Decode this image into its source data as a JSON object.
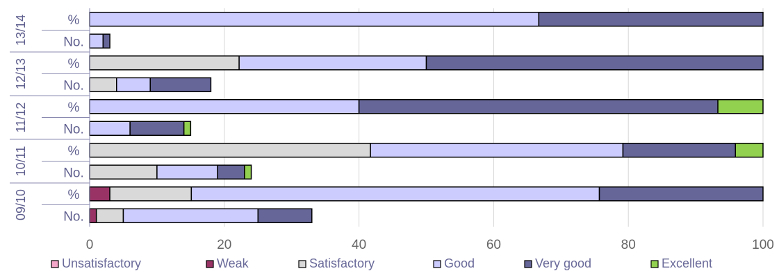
{
  "chart_data": {
    "type": "bar",
    "orientation": "horizontal",
    "stacked": true,
    "xlim": [
      0,
      100
    ],
    "x_ticks": [
      0,
      20,
      40,
      60,
      80,
      100
    ],
    "grid": "vertical",
    "legend_position": "bottom",
    "categories": [
      {
        "group": "13/14",
        "label": "%"
      },
      {
        "group": "13/14",
        "label": "No."
      },
      {
        "group": "12/13",
        "label": "%"
      },
      {
        "group": "12/13",
        "label": "No."
      },
      {
        "group": "11/12",
        "label": "%"
      },
      {
        "group": "11/12",
        "label": "No."
      },
      {
        "group": "10/11",
        "label": "%"
      },
      {
        "group": "10/11",
        "label": "No."
      },
      {
        "group": "09/10",
        "label": "%"
      },
      {
        "group": "09/10",
        "label": "No."
      }
    ],
    "groups": [
      "13/14",
      "12/13",
      "11/12",
      "10/11",
      "09/10"
    ],
    "series": [
      {
        "name": "Unsatisfactory",
        "color": "#f4a6c8",
        "values": [
          0,
          0,
          0,
          0,
          0,
          0,
          0,
          0,
          0,
          0
        ]
      },
      {
        "name": "Weak",
        "color": "#993366",
        "values": [
          0,
          0,
          0,
          0,
          0,
          0,
          0,
          0,
          3,
          1
        ]
      },
      {
        "name": "Satisfactory",
        "color": "#d9d9d9",
        "values": [
          0,
          0,
          22.2,
          4,
          0,
          0,
          41.7,
          10,
          12.1,
          4
        ]
      },
      {
        "name": "Good",
        "color": "#ccccff",
        "values": [
          66.7,
          2,
          27.8,
          5,
          40,
          6,
          37.5,
          9,
          60.6,
          20
        ]
      },
      {
        "name": "Very good",
        "color": "#666699",
        "values": [
          33.3,
          1,
          50,
          9,
          53.3,
          8,
          16.7,
          4,
          24.3,
          8
        ]
      },
      {
        "name": "Excellent",
        "color": "#92d050",
        "values": [
          0,
          0,
          0,
          0,
          6.7,
          1,
          4.1,
          1,
          0,
          0
        ]
      }
    ]
  }
}
